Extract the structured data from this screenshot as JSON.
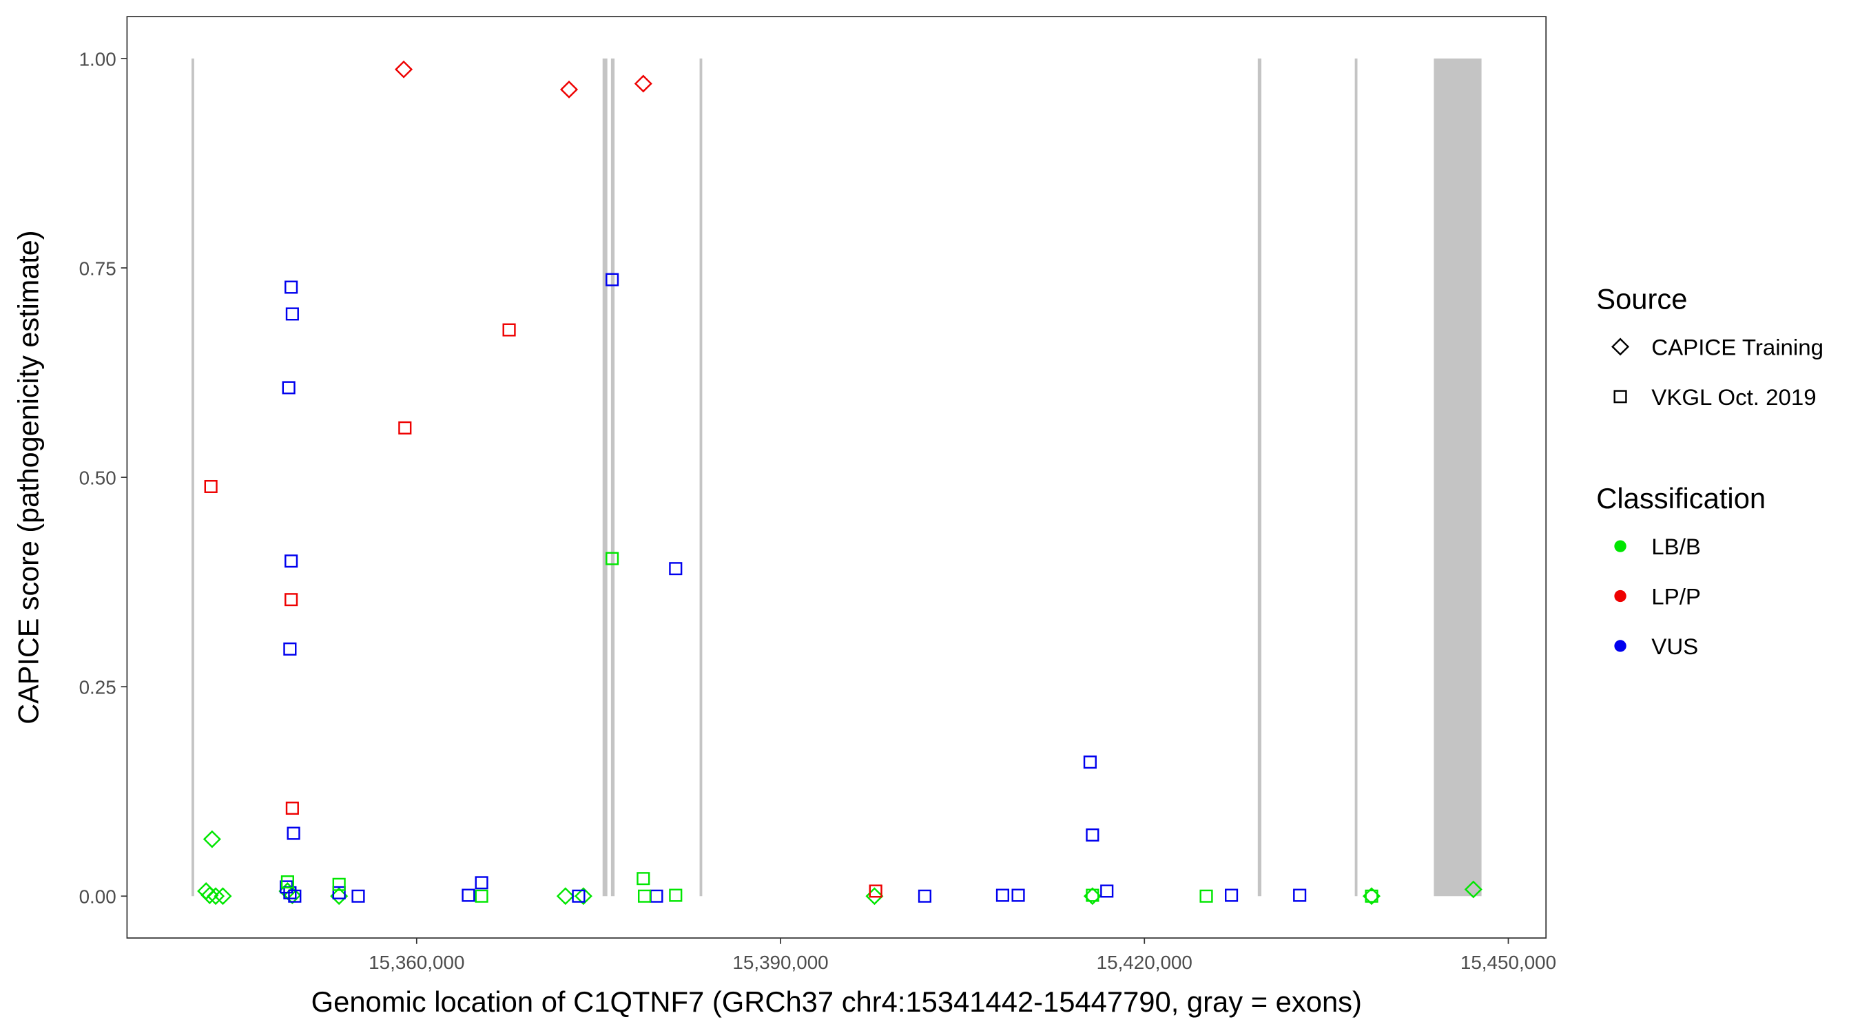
{
  "chart_data": {
    "type": "scatter",
    "xlabel": "Genomic location of C1QTNF7 (GRCh37 chr4:15341442-15447790, gray = exons)",
    "ylabel": "CAPICE score (pathogenicity estimate)",
    "xlim": [
      15336125,
      15453107
    ],
    "ylim": [
      -0.05,
      1.05
    ],
    "xticks": [
      {
        "value": 15360000,
        "label": "15,360,000"
      },
      {
        "value": 15390000,
        "label": "15,390,000"
      },
      {
        "value": 15420000,
        "label": "15,420,000"
      },
      {
        "value": 15450000,
        "label": "15,450,000"
      }
    ],
    "yticks": [
      {
        "value": 0,
        "label": "0.00"
      },
      {
        "value": 0.25,
        "label": "0.25"
      },
      {
        "value": 0.5,
        "label": "0.50"
      },
      {
        "value": 0.75,
        "label": "0.75"
      },
      {
        "value": 1,
        "label": "1.00"
      }
    ],
    "grid": false,
    "exon_color": "#c4c4c4",
    "exons": [
      [
        15341442,
        15341640
      ],
      [
        15375329,
        15375724
      ],
      [
        15376020,
        15376317
      ],
      [
        15383328,
        15383525
      ],
      [
        15429345,
        15429641
      ],
      [
        15437344,
        15437541
      ],
      [
        15443861,
        15447790
      ]
    ],
    "shape_legend": {
      "title": "Source",
      "items": [
        {
          "name": "CAPICE Training",
          "shape": "diamond"
        },
        {
          "name": "VKGL Oct. 2019",
          "shape": "square"
        }
      ]
    },
    "color_legend": {
      "title": "Classification",
      "items": [
        {
          "name": "LB/B",
          "color": "#00e600"
        },
        {
          "name": "LP/P",
          "color": "#ee0000"
        },
        {
          "name": "VUS",
          "color": "#0000ee"
        }
      ]
    },
    "series": [
      {
        "source": "CAPICE Training",
        "classification": "LP/P",
        "x": [
          15358936,
          15372564,
          15378686
        ],
        "values": [
          0.987,
          0.963,
          0.97
        ]
      },
      {
        "source": "CAPICE Training",
        "classification": "LB/B",
        "x": [
          15343136,
          15342643,
          15342939,
          15343433,
          15344025,
          15349358,
          15349753,
          15353604,
          15372268,
          15373749,
          15397745,
          15415718,
          15438726,
          15447120
        ],
        "values": [
          0.068,
          0.006,
          0.001,
          0,
          0,
          0.006,
          0.001,
          0,
          0,
          0,
          0,
          0,
          0,
          0.008
        ]
      },
      {
        "source": "VKGL Oct. 2019",
        "classification": "VUS",
        "x": [
          15349654,
          15349753,
          15349456,
          15349654,
          15349555,
          15349851,
          15349259,
          15349555,
          15349950,
          15353604,
          15355184,
          15364269,
          15365355,
          15373354,
          15376119,
          15381353,
          15379773,
          15401893,
          15408311,
          15409595,
          15415520,
          15415718,
          15416903,
          15427173,
          15432801
        ],
        "values": [
          0.727,
          0.695,
          0.607,
          0.4,
          0.295,
          0.075,
          0.011,
          0.004,
          0,
          0.004,
          0,
          0.001,
          0.016,
          0,
          0.736,
          0.391,
          0,
          0,
          0.001,
          0.001,
          0.16,
          0.073,
          0.006,
          0.001,
          0.001
        ]
      },
      {
        "source": "VKGL Oct. 2019",
        "classification": "LP/P",
        "x": [
          15343038,
          15367626,
          15359035,
          15349654,
          15349753,
          15397844
        ],
        "values": [
          0.489,
          0.676,
          0.559,
          0.354,
          0.105,
          0.006
        ]
      },
      {
        "source": "VKGL Oct. 2019",
        "classification": "LB/B",
        "x": [
          15349358,
          15353604,
          15365355,
          15376119,
          15378686,
          15378785,
          15381353,
          15425099,
          15415718,
          15438726
        ],
        "values": [
          0.017,
          0.014,
          0,
          0.403,
          0.021,
          0,
          0.001,
          0,
          0.001,
          0
        ]
      }
    ]
  }
}
